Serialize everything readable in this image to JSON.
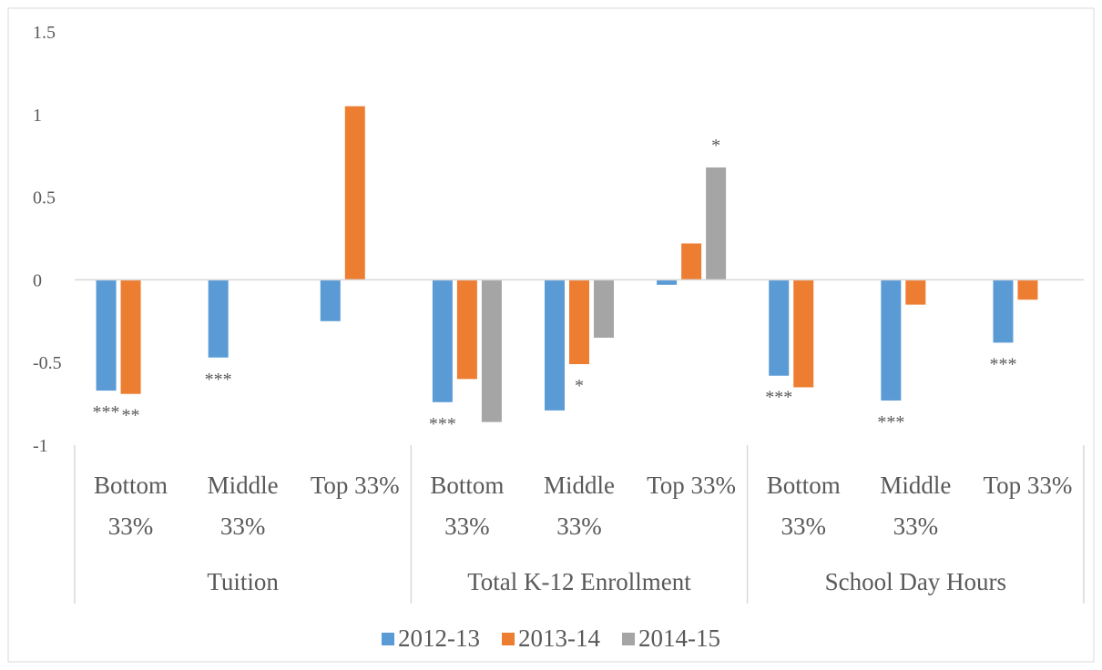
{
  "chart_data": {
    "type": "bar",
    "categories": [
      "Bottom 33%",
      "Middle 33%",
      "Top 33%",
      "Bottom 33%",
      "Middle 33%",
      "Top 33%",
      "Bottom 33%",
      "Middle 33%",
      "Top 33%"
    ],
    "groups": [
      "Tuition",
      "Total K-12 Enrollment",
      "School Day Hours"
    ],
    "series": [
      {
        "name": "2012-13",
        "color": "#5b9bd5",
        "values": [
          -0.67,
          -0.47,
          -0.25,
          -0.74,
          -0.79,
          -0.03,
          -0.58,
          -0.73,
          -0.38
        ],
        "significance": [
          "***",
          "***",
          null,
          "***",
          null,
          null,
          "***",
          "***",
          "***"
        ]
      },
      {
        "name": "2013-14",
        "color": "#ed7d31",
        "values": [
          -0.69,
          null,
          1.05,
          -0.6,
          -0.51,
          0.22,
          -0.65,
          -0.15,
          -0.12
        ],
        "significance": [
          "**",
          null,
          null,
          null,
          "*",
          null,
          null,
          null,
          null
        ]
      },
      {
        "name": "2014-15",
        "color": "#a5a5a5",
        "values": [
          null,
          null,
          null,
          -0.86,
          -0.35,
          0.68,
          null,
          null,
          null
        ],
        "significance": [
          null,
          null,
          null,
          null,
          null,
          "*",
          null,
          null,
          null
        ]
      }
    ],
    "ylim": [
      -1,
      1.5
    ],
    "yticks": [
      -1,
      -0.5,
      0,
      0.5,
      1,
      1.5
    ],
    "grid": false,
    "legend": "bottom"
  }
}
